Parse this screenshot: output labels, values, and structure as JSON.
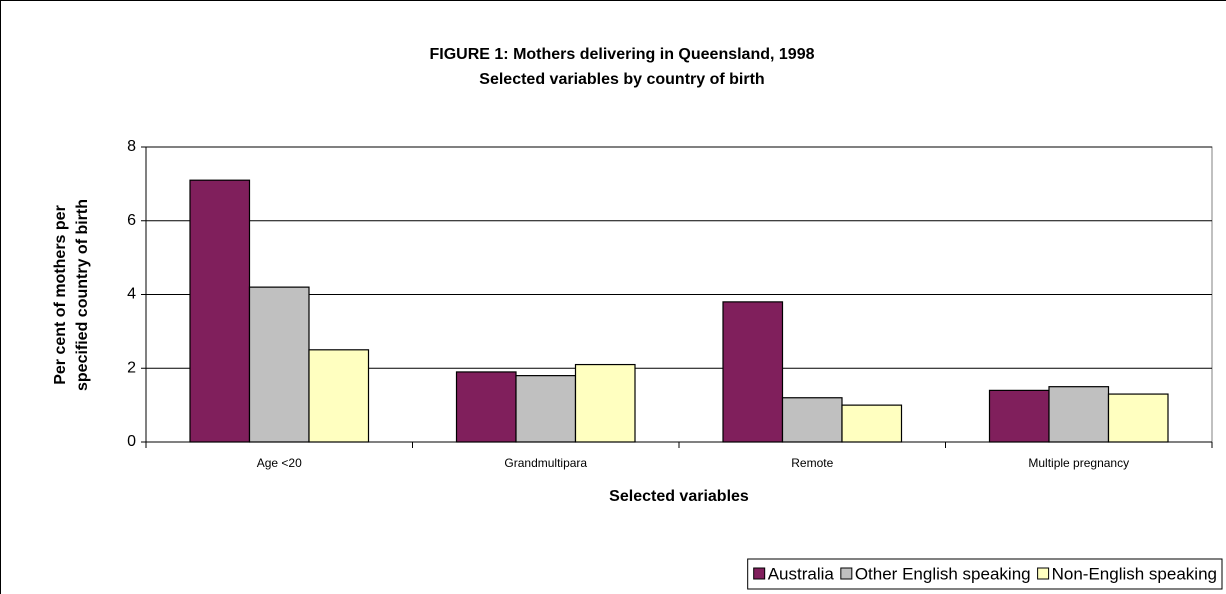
{
  "chart_data": {
    "type": "bar",
    "title": "FIGURE 1: Mothers delivering in Queensland, 1998",
    "subtitle": "Selected variables by country of birth",
    "x_label": "Selected variables",
    "y_label": [
      "Per cent of mothers per",
      "specified country of birth"
    ],
    "categories": [
      "Age <20",
      "Grandmultipara",
      "Remote",
      "Multiple pregnancy"
    ],
    "series": [
      {
        "name": "Australia",
        "color": "#801f5c",
        "values": [
          7.1,
          1.9,
          3.8,
          1.4
        ]
      },
      {
        "name": "Other English speaking",
        "color": "#c0c0c0",
        "values": [
          4.2,
          1.8,
          1.2,
          1.5
        ]
      },
      {
        "name": "Non-English speaking",
        "color": "#ffffc0",
        "values": [
          2.5,
          2.1,
          1.0,
          1.3
        ]
      }
    ],
    "ylim": [
      0,
      8
    ],
    "yticks": [
      0,
      2,
      4,
      6,
      8
    ],
    "grid": true,
    "legend": "bottom-right"
  }
}
